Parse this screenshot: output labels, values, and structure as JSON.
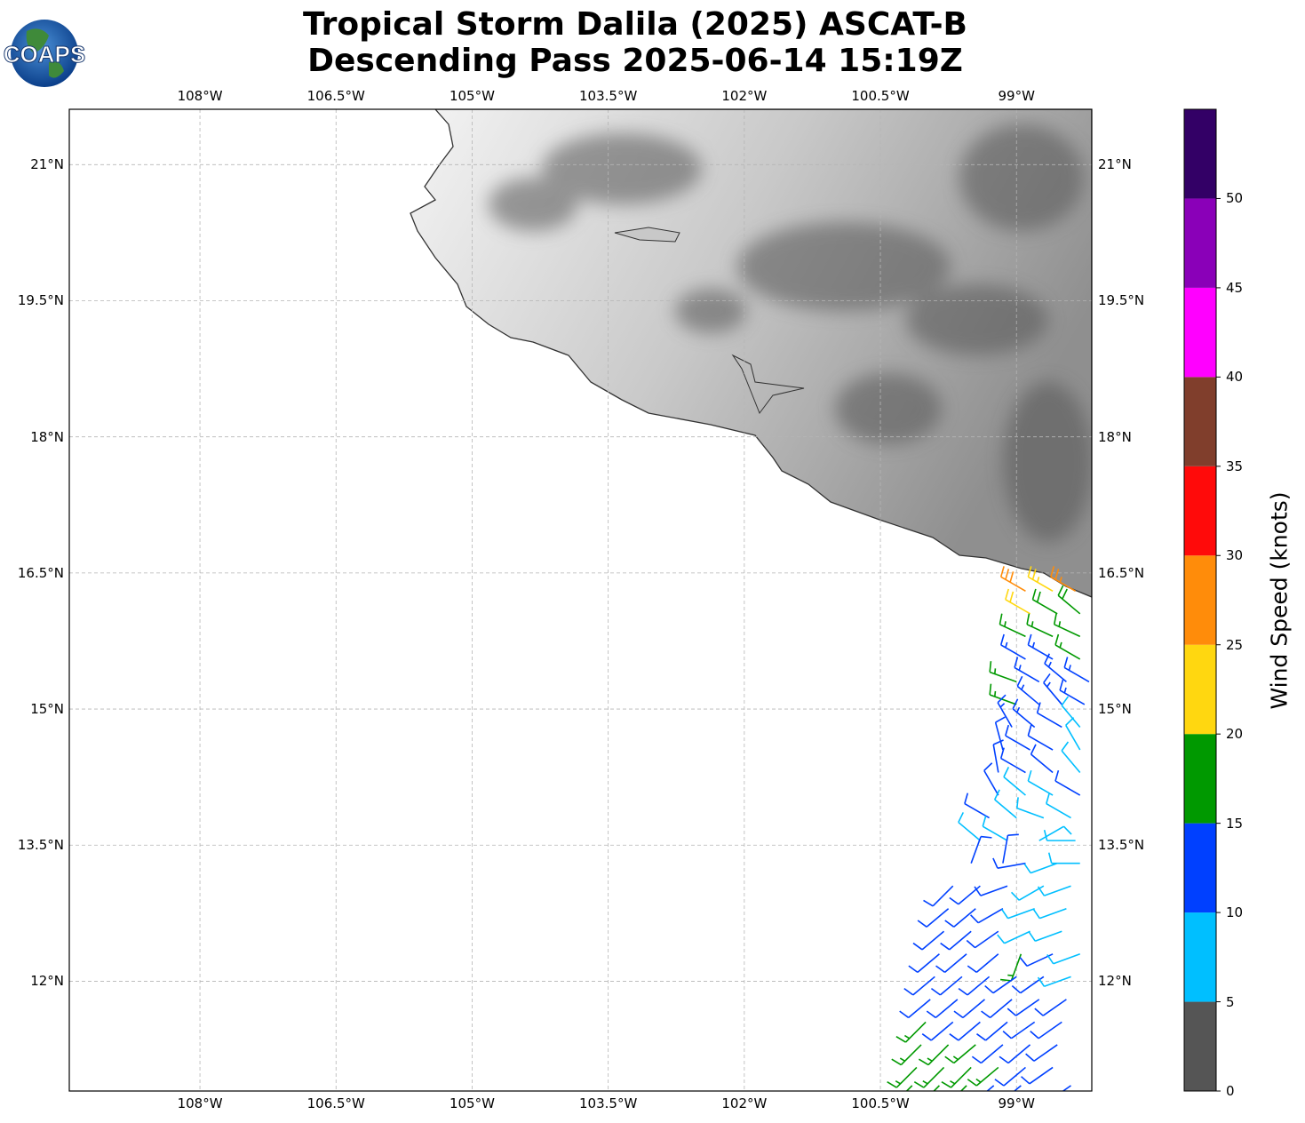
{
  "header": {
    "title_line1": "Tropical Storm Dalila (2025) ASCAT-B",
    "title_line2": "Descending Pass 2025-06-14 15:19Z",
    "logo_text": "COAPS"
  },
  "map": {
    "lon_range": [
      -109.44,
      -98.17
    ],
    "lat_range": [
      10.79,
      21.61
    ],
    "lon_ticks": [
      {
        "v": -108,
        "label": "108°W"
      },
      {
        "v": -106.5,
        "label": "106.5°W"
      },
      {
        "v": -105,
        "label": "105°W"
      },
      {
        "v": -103.5,
        "label": "103.5°W"
      },
      {
        "v": -102,
        "label": "102°W"
      },
      {
        "v": -100.5,
        "label": "100.5°W"
      },
      {
        "v": -99,
        "label": "99°W"
      }
    ],
    "lat_ticks": [
      {
        "v": 21,
        "label": "21°N"
      },
      {
        "v": 19.5,
        "label": "19.5°N"
      },
      {
        "v": 18,
        "label": "18°N"
      },
      {
        "v": 16.5,
        "label": "16.5°N"
      },
      {
        "v": 15,
        "label": "15°N"
      },
      {
        "v": 13.5,
        "label": "13.5°N"
      },
      {
        "v": 12,
        "label": "12°N"
      }
    ]
  },
  "colorbar": {
    "label": "Wind Speed (knots)",
    "range": [
      0,
      55
    ],
    "bins": [
      {
        "min": 0,
        "max": 5,
        "color": "#555555"
      },
      {
        "min": 5,
        "max": 10,
        "color": "#00bfff"
      },
      {
        "min": 10,
        "max": 15,
        "color": "#0040ff"
      },
      {
        "min": 15,
        "max": 20,
        "color": "#009900"
      },
      {
        "min": 20,
        "max": 25,
        "color": "#ffd710"
      },
      {
        "min": 25,
        "max": 30,
        "color": "#ff8c0a"
      },
      {
        "min": 30,
        "max": 35,
        "color": "#ff0a0a"
      },
      {
        "min": 35,
        "max": 40,
        "color": "#803e2c"
      },
      {
        "min": 40,
        "max": 45,
        "color": "#ff00ff"
      },
      {
        "min": 45,
        "max": 50,
        "color": "#8a00b8"
      },
      {
        "min": 50,
        "max": 55,
        "color": "#330066"
      }
    ],
    "ticks": [
      "0",
      "5",
      "10",
      "15",
      "20",
      "25",
      "30",
      "35",
      "40",
      "45",
      "50"
    ]
  },
  "chart_data": {
    "type": "wind_barbs",
    "units": "knots",
    "fields": [
      "lat",
      "lon",
      "speed_kt",
      "direction_deg"
    ],
    "barbs": [
      [
        16.3,
        -98.9,
        28,
        300
      ],
      [
        16.3,
        -98.6,
        24,
        300
      ],
      [
        16.3,
        -98.35,
        26,
        300
      ],
      [
        16.05,
        -98.85,
        22,
        300
      ],
      [
        16.05,
        -98.55,
        18,
        300
      ],
      [
        16.05,
        -98.3,
        18,
        310
      ],
      [
        15.8,
        -98.9,
        17,
        295
      ],
      [
        15.8,
        -98.6,
        17,
        295
      ],
      [
        15.8,
        -98.3,
        17,
        295
      ],
      [
        15.55,
        -98.9,
        13,
        300
      ],
      [
        15.55,
        -98.6,
        13,
        300
      ],
      [
        15.55,
        -98.3,
        17,
        300
      ],
      [
        15.3,
        -99.0,
        17,
        290
      ],
      [
        15.3,
        -98.75,
        13,
        300
      ],
      [
        15.3,
        -98.45,
        13,
        310
      ],
      [
        15.3,
        -98.2,
        13,
        300
      ],
      [
        15.05,
        -99.0,
        17,
        290
      ],
      [
        15.05,
        -98.75,
        13,
        310
      ],
      [
        15.05,
        -98.5,
        13,
        320
      ],
      [
        15.05,
        -98.25,
        13,
        300
      ],
      [
        14.8,
        -99.05,
        13,
        330
      ],
      [
        14.8,
        -98.8,
        13,
        310
      ],
      [
        14.8,
        -98.5,
        12,
        300
      ],
      [
        14.8,
        -98.3,
        8,
        320
      ],
      [
        14.55,
        -99.15,
        12,
        345
      ],
      [
        14.55,
        -98.85,
        12,
        300
      ],
      [
        14.55,
        -98.6,
        12,
        300
      ],
      [
        14.55,
        -98.3,
        8,
        330
      ],
      [
        14.3,
        -99.2,
        12,
        350
      ],
      [
        14.3,
        -98.9,
        12,
        300
      ],
      [
        14.3,
        -98.6,
        12,
        310
      ],
      [
        14.3,
        -98.3,
        8,
        320
      ],
      [
        14.05,
        -99.2,
        12,
        330
      ],
      [
        14.05,
        -98.9,
        8,
        310
      ],
      [
        14.05,
        -98.6,
        8,
        300
      ],
      [
        14.05,
        -98.3,
        12,
        300
      ],
      [
        13.8,
        -99.3,
        12,
        300
      ],
      [
        13.8,
        -99.0,
        8,
        310
      ],
      [
        13.8,
        -98.7,
        8,
        290
      ],
      [
        13.8,
        -98.4,
        8,
        300
      ],
      [
        13.55,
        -99.4,
        8,
        310
      ],
      [
        13.55,
        -99.1,
        8,
        300
      ],
      [
        13.55,
        -98.75,
        8,
        60
      ],
      [
        13.55,
        -98.35,
        8,
        270
      ],
      [
        13.3,
        -99.5,
        12,
        20
      ],
      [
        13.3,
        -99.15,
        12,
        10
      ],
      [
        13.3,
        -98.9,
        12,
        260
      ],
      [
        13.3,
        -98.55,
        8,
        250
      ],
      [
        13.3,
        -98.3,
        8,
        270
      ],
      [
        13.05,
        -99.7,
        12,
        225
      ],
      [
        13.05,
        -99.4,
        12,
        230
      ],
      [
        13.05,
        -99.1,
        12,
        250
      ],
      [
        13.05,
        -98.7,
        8,
        240
      ],
      [
        13.05,
        -98.4,
        8,
        250
      ],
      [
        12.8,
        -99.75,
        12,
        230
      ],
      [
        12.8,
        -99.45,
        12,
        230
      ],
      [
        12.8,
        -99.15,
        12,
        240
      ],
      [
        12.8,
        -98.8,
        8,
        250
      ],
      [
        12.8,
        -98.45,
        8,
        250
      ],
      [
        12.55,
        -99.8,
        12,
        230
      ],
      [
        12.55,
        -99.5,
        12,
        230
      ],
      [
        12.55,
        -99.2,
        12,
        235
      ],
      [
        12.55,
        -98.85,
        8,
        245
      ],
      [
        12.55,
        -98.5,
        8,
        250
      ],
      [
        12.3,
        -99.85,
        12,
        230
      ],
      [
        12.3,
        -99.55,
        12,
        230
      ],
      [
        12.3,
        -99.2,
        12,
        230
      ],
      [
        12.3,
        -98.95,
        17,
        200
      ],
      [
        12.3,
        -98.6,
        12,
        245
      ],
      [
        12.3,
        -98.3,
        8,
        250
      ],
      [
        12.05,
        -99.9,
        12,
        230
      ],
      [
        12.05,
        -99.6,
        12,
        230
      ],
      [
        12.05,
        -99.3,
        12,
        230
      ],
      [
        12.05,
        -99.0,
        12,
        235
      ],
      [
        12.05,
        -98.7,
        12,
        235
      ],
      [
        12.05,
        -98.4,
        8,
        250
      ],
      [
        11.8,
        -99.95,
        12,
        230
      ],
      [
        11.8,
        -99.65,
        12,
        230
      ],
      [
        11.8,
        -99.35,
        12,
        230
      ],
      [
        11.8,
        -99.05,
        12,
        230
      ],
      [
        11.8,
        -98.75,
        12,
        235
      ],
      [
        11.8,
        -98.45,
        12,
        235
      ],
      [
        11.55,
        -100.0,
        17,
        225
      ],
      [
        11.55,
        -99.7,
        12,
        230
      ],
      [
        11.55,
        -99.4,
        12,
        230
      ],
      [
        11.55,
        -99.1,
        12,
        230
      ],
      [
        11.55,
        -98.8,
        12,
        235
      ],
      [
        11.55,
        -98.5,
        12,
        235
      ],
      [
        11.3,
        -100.05,
        17,
        225
      ],
      [
        11.3,
        -99.75,
        17,
        225
      ],
      [
        11.3,
        -99.45,
        17,
        230
      ],
      [
        11.3,
        -99.15,
        12,
        230
      ],
      [
        11.3,
        -98.85,
        12,
        230
      ],
      [
        11.3,
        -98.55,
        12,
        235
      ],
      [
        11.05,
        -100.1,
        17,
        225
      ],
      [
        11.05,
        -99.8,
        17,
        225
      ],
      [
        11.05,
        -99.5,
        17,
        225
      ],
      [
        11.05,
        -99.2,
        17,
        230
      ],
      [
        11.05,
        -98.9,
        12,
        230
      ],
      [
        11.05,
        -98.6,
        12,
        235
      ],
      [
        10.85,
        -100.15,
        17,
        225
      ],
      [
        10.85,
        -99.85,
        17,
        225
      ],
      [
        10.85,
        -99.55,
        17,
        225
      ],
      [
        10.85,
        -99.25,
        12,
        230
      ],
      [
        10.85,
        -98.95,
        12,
        230
      ],
      [
        10.85,
        -98.4,
        12,
        235
      ]
    ]
  }
}
